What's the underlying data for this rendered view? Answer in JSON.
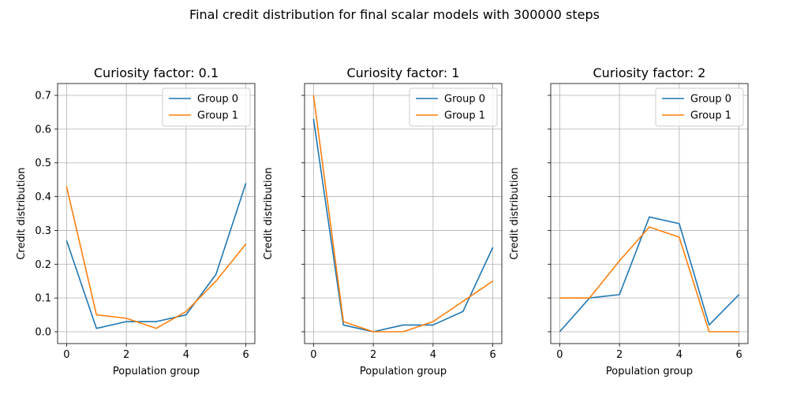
{
  "figure": {
    "suptitle": "Final credit distribution for final scalar models with 300000 steps"
  },
  "chart_data": [
    {
      "type": "line",
      "title": "Curiosity factor: 0.1",
      "xlabel": "Population group",
      "ylabel": "Credit distribution",
      "x": [
        0,
        1,
        2,
        3,
        4,
        5,
        6
      ],
      "xlim": [
        -0.3,
        6.3
      ],
      "ylim": [
        -0.035,
        0.735
      ],
      "xticks": [
        0,
        2,
        4,
        6
      ],
      "yticks": [
        0.0,
        0.1,
        0.2,
        0.3,
        0.4,
        0.5,
        0.6,
        0.7
      ],
      "ytick_labels": [
        "0.0",
        "0.1",
        "0.2",
        "0.3",
        "0.4",
        "0.5",
        "0.6",
        "0.7"
      ],
      "show_yticklabels": true,
      "grid": true,
      "legend_position": "upper right",
      "series": [
        {
          "name": "Group 0",
          "color": "#1f77b4",
          "values": [
            0.27,
            0.01,
            0.03,
            0.03,
            0.05,
            0.17,
            0.44
          ]
        },
        {
          "name": "Group 1",
          "color": "#ff7f0e",
          "values": [
            0.43,
            0.05,
            0.04,
            0.01,
            0.06,
            0.15,
            0.26
          ]
        }
      ]
    },
    {
      "type": "line",
      "title": "Curiosity factor: 1",
      "xlabel": "Population group",
      "ylabel": "Credit distribution",
      "x": [
        0,
        1,
        2,
        3,
        4,
        5,
        6
      ],
      "xlim": [
        -0.3,
        6.3
      ],
      "ylim": [
        -0.035,
        0.735
      ],
      "xticks": [
        0,
        2,
        4,
        6
      ],
      "yticks": [
        0.0,
        0.1,
        0.2,
        0.3,
        0.4,
        0.5,
        0.6,
        0.7
      ],
      "ytick_labels": [
        "0.0",
        "0.1",
        "0.2",
        "0.3",
        "0.4",
        "0.5",
        "0.6",
        "0.7"
      ],
      "show_yticklabels": false,
      "grid": true,
      "legend_position": "upper right",
      "series": [
        {
          "name": "Group 0",
          "color": "#1f77b4",
          "values": [
            0.63,
            0.02,
            0.0,
            0.02,
            0.02,
            0.06,
            0.25
          ]
        },
        {
          "name": "Group 1",
          "color": "#ff7f0e",
          "values": [
            0.7,
            0.03,
            0.0,
            0.0,
            0.03,
            0.09,
            0.15
          ]
        }
      ]
    },
    {
      "type": "line",
      "title": "Curiosity factor: 2",
      "xlabel": "Population group",
      "ylabel": "Credit distribution",
      "x": [
        0,
        1,
        2,
        3,
        4,
        5,
        6
      ],
      "xlim": [
        -0.3,
        6.3
      ],
      "ylim": [
        -0.035,
        0.735
      ],
      "xticks": [
        0,
        2,
        4,
        6
      ],
      "yticks": [
        0.0,
        0.1,
        0.2,
        0.3,
        0.4,
        0.5,
        0.6,
        0.7
      ],
      "ytick_labels": [
        "0.0",
        "0.1",
        "0.2",
        "0.3",
        "0.4",
        "0.5",
        "0.6",
        "0.7"
      ],
      "show_yticklabels": false,
      "grid": true,
      "legend_position": "upper right",
      "series": [
        {
          "name": "Group 0",
          "color": "#1f77b4",
          "values": [
            0.0,
            0.1,
            0.11,
            0.34,
            0.32,
            0.02,
            0.11
          ]
        },
        {
          "name": "Group 1",
          "color": "#ff7f0e",
          "values": [
            0.1,
            0.1,
            0.21,
            0.31,
            0.28,
            0.0,
            0.0
          ]
        }
      ]
    }
  ]
}
